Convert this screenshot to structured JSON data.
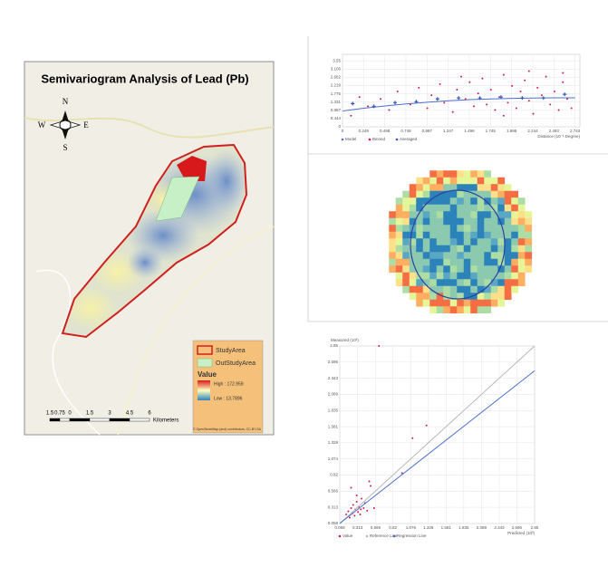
{
  "map": {
    "title": "Semivariogram Analysis of Lead (Pb)",
    "compass": {
      "n": "N",
      "s": "S",
      "e": "E",
      "w": "W"
    },
    "legend": {
      "study_area": "StudyArea",
      "out_study_area": "OutStudyArea",
      "value_title": "Value",
      "high": "High : 172.959",
      "low": "Low : 13.7896"
    },
    "scale_bar": {
      "labels": [
        "1.5",
        "0.75",
        "0",
        "1.5",
        "3",
        "4.5",
        "6"
      ],
      "unit": "Kilometers"
    },
    "attribution": "© OpenStreetMap (and) contributors, CC-BY-SA"
  },
  "chart_data": [
    {
      "type": "scatter",
      "xlabel": "Distance (10⁻¹ Degree)",
      "xlim": [
        0,
        2.8
      ],
      "ylim": [
        0,
        3.9
      ],
      "xticks": [
        0,
        0.249,
        0.498,
        0.748,
        0.997,
        1.247,
        1.496,
        1.745,
        1.995,
        2.244,
        2.493,
        2.743
      ],
      "yticks": [
        0,
        0.444,
        0.887,
        1.331,
        1.775,
        2.219,
        2.662,
        3.106,
        3.55
      ],
      "grid": true,
      "series": [
        {
          "name": "Model",
          "color": "#4a6fd0",
          "mark": "line",
          "x": [
            0,
            0.25,
            0.5,
            0.75,
            1.0,
            1.25,
            1.5,
            1.75,
            2.0,
            2.25,
            2.5,
            2.743
          ],
          "values": [
            0.85,
            1.0,
            1.12,
            1.23,
            1.32,
            1.4,
            1.46,
            1.5,
            1.53,
            1.55,
            1.56,
            1.56
          ]
        },
        {
          "name": "Binned",
          "color": "#d0204a",
          "mark": "dot",
          "x": [
            0.1,
            0.2,
            0.3,
            0.45,
            0.55,
            0.65,
            0.8,
            0.9,
            1.0,
            1.05,
            1.15,
            1.2,
            1.3,
            1.35,
            1.45,
            1.5,
            1.55,
            1.6,
            1.65,
            1.7,
            1.75,
            1.8,
            1.85,
            1.9,
            1.95,
            2.0,
            2.05,
            2.1,
            2.15,
            2.2,
            2.25,
            2.3,
            2.35,
            2.4,
            2.45,
            2.5,
            2.55,
            2.6,
            2.65,
            2.7,
            1.4,
            1.9,
            2.2,
            2.6
          ],
          "values": [
            0.6,
            1.6,
            1.1,
            1.5,
            0.9,
            1.9,
            1.2,
            2.1,
            1.0,
            1.7,
            2.3,
            1.3,
            0.8,
            2.0,
            1.5,
            2.4,
            1.1,
            1.8,
            2.6,
            1.2,
            2.0,
            0.9,
            1.6,
            2.8,
            1.3,
            2.2,
            1.0,
            1.9,
            2.5,
            1.4,
            0.7,
            2.1,
            1.7,
            2.7,
            1.2,
            1.9,
            0.9,
            2.4,
            1.5,
            1.0,
            2.7,
            0.6,
            3.0,
            2.9
          ]
        },
        {
          "name": "Averaged",
          "color": "#3a56c0",
          "mark": "cross",
          "x": [
            0.12,
            0.37,
            0.62,
            0.87,
            1.12,
            1.37,
            1.62,
            1.87,
            2.12,
            2.37,
            2.62
          ],
          "values": [
            1.25,
            1.1,
            1.3,
            1.35,
            1.5,
            1.55,
            1.55,
            1.6,
            1.55,
            1.55,
            1.75
          ]
        }
      ]
    },
    {
      "type": "scatter",
      "xlabel": "Predicted (10³)",
      "ylabel": "Measured (10³)",
      "xlim": [
        0.058,
        2.85
      ],
      "ylim": [
        0.058,
        2.85
      ],
      "xticks": [
        0.058,
        0.313,
        0.569,
        0.82,
        1.076,
        1.328,
        1.581,
        1.835,
        2.089,
        2.343,
        2.595,
        2.85
      ],
      "yticks": [
        0.058,
        0.313,
        0.566,
        0.82,
        1.074,
        1.328,
        1.581,
        1.835,
        2.089,
        2.343,
        2.596,
        2.85
      ],
      "grid": true,
      "series": [
        {
          "name": "Value",
          "color": "#d0204a",
          "mark": "dot",
          "x": [
            0.15,
            0.18,
            0.2,
            0.22,
            0.24,
            0.25,
            0.27,
            0.28,
            0.3,
            0.32,
            0.33,
            0.35,
            0.37,
            0.4,
            0.42,
            0.45,
            0.48,
            0.5,
            0.62,
            0.95,
            1.1,
            1.3,
            0.22,
            0.3,
            0.36,
            0.55
          ],
          "values": [
            0.2,
            0.25,
            0.15,
            0.3,
            0.22,
            0.35,
            0.18,
            0.28,
            0.4,
            0.24,
            0.32,
            0.2,
            0.45,
            0.3,
            0.38,
            0.26,
            0.72,
            0.65,
            2.85,
            0.85,
            1.4,
            1.6,
            0.62,
            0.5,
            0.28,
            0.3
          ]
        },
        {
          "name": "Reference Line",
          "color": "#b8b8b8",
          "mark": "line",
          "x": [
            0.058,
            2.85
          ],
          "values": [
            0.058,
            2.85
          ]
        },
        {
          "name": "Regression Line",
          "color": "#4a6fd0",
          "mark": "line",
          "x": [
            0.058,
            2.85
          ],
          "values": [
            0.06,
            2.46
          ]
        }
      ]
    }
  ]
}
